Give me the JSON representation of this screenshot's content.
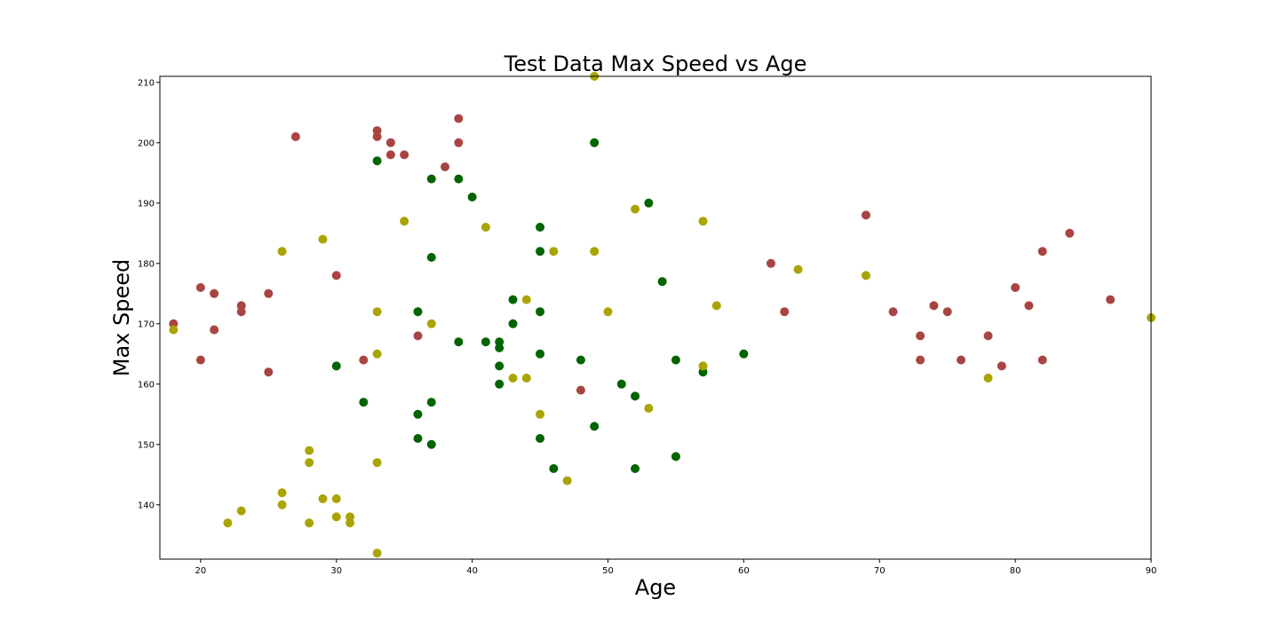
{
  "chart_data": {
    "type": "scatter",
    "title": "Test Data Max Speed vs Age",
    "xlabel": "Age",
    "ylabel": "Max Speed",
    "xlim": [
      17,
      90
    ],
    "ylim": [
      131,
      211
    ],
    "xticks": [
      20,
      30,
      40,
      50,
      60,
      70,
      80,
      90
    ],
    "yticks": [
      140,
      150,
      160,
      170,
      180,
      190,
      200,
      210
    ],
    "xtick_labels": [
      "20",
      "30",
      "40",
      "50",
      "60",
      "70",
      "80",
      "90"
    ],
    "ytick_labels": [
      "140",
      "150",
      "160",
      "170",
      "180",
      "190",
      "200",
      "210"
    ],
    "grid": false,
    "legend": null,
    "series": [
      {
        "name": "red",
        "color": "#a94442",
        "points": [
          [
            18,
            170
          ],
          [
            20,
            176
          ],
          [
            20,
            164
          ],
          [
            21,
            175
          ],
          [
            21,
            169
          ],
          [
            23,
            173
          ],
          [
            23,
            172
          ],
          [
            25,
            175
          ],
          [
            25,
            162
          ],
          [
            27,
            201
          ],
          [
            30,
            178
          ],
          [
            32,
            164
          ],
          [
            33,
            202
          ],
          [
            33,
            201
          ],
          [
            34,
            200
          ],
          [
            34,
            198
          ],
          [
            35,
            198
          ],
          [
            36,
            168
          ],
          [
            38,
            196
          ],
          [
            39,
            204
          ],
          [
            39,
            200
          ],
          [
            48,
            159
          ],
          [
            62,
            180
          ],
          [
            63,
            172
          ],
          [
            69,
            188
          ],
          [
            71,
            172
          ],
          [
            73,
            168
          ],
          [
            73,
            164
          ],
          [
            74,
            173
          ],
          [
            75,
            172
          ],
          [
            76,
            164
          ],
          [
            78,
            168
          ],
          [
            79,
            163
          ],
          [
            80,
            176
          ],
          [
            81,
            173
          ],
          [
            82,
            182
          ],
          [
            82,
            164
          ],
          [
            84,
            185
          ],
          [
            87,
            174
          ]
        ]
      },
      {
        "name": "green",
        "color": "#006400",
        "points": [
          [
            30,
            163
          ],
          [
            32,
            157
          ],
          [
            33,
            197
          ],
          [
            36,
            172
          ],
          [
            36,
            155
          ],
          [
            36,
            151
          ],
          [
            37,
            194
          ],
          [
            37,
            181
          ],
          [
            37,
            157
          ],
          [
            37,
            150
          ],
          [
            39,
            194
          ],
          [
            39,
            167
          ],
          [
            40,
            191
          ],
          [
            41,
            167
          ],
          [
            42,
            167
          ],
          [
            42,
            166
          ],
          [
            42,
            163
          ],
          [
            42,
            160
          ],
          [
            43,
            174
          ],
          [
            43,
            170
          ],
          [
            45,
            186
          ],
          [
            45,
            182
          ],
          [
            45,
            172
          ],
          [
            45,
            165
          ],
          [
            45,
            151
          ],
          [
            46,
            146
          ],
          [
            48,
            164
          ],
          [
            49,
            200
          ],
          [
            49,
            153
          ],
          [
            51,
            160
          ],
          [
            52,
            158
          ],
          [
            52,
            146
          ],
          [
            53,
            190
          ],
          [
            54,
            177
          ],
          [
            55,
            164
          ],
          [
            55,
            148
          ],
          [
            57,
            162
          ],
          [
            60,
            165
          ]
        ]
      },
      {
        "name": "yellow",
        "color": "#aaa400",
        "points": [
          [
            18,
            169
          ],
          [
            22,
            137
          ],
          [
            23,
            139
          ],
          [
            26,
            182
          ],
          [
            26,
            142
          ],
          [
            26,
            140
          ],
          [
            28,
            149
          ],
          [
            28,
            147
          ],
          [
            28,
            137
          ],
          [
            29,
            184
          ],
          [
            29,
            141
          ],
          [
            30,
            141
          ],
          [
            30,
            138
          ],
          [
            31,
            138
          ],
          [
            31,
            137
          ],
          [
            33,
            172
          ],
          [
            33,
            165
          ],
          [
            33,
            147
          ],
          [
            33,
            132
          ],
          [
            35,
            187
          ],
          [
            37,
            170
          ],
          [
            41,
            186
          ],
          [
            43,
            161
          ],
          [
            44,
            174
          ],
          [
            44,
            161
          ],
          [
            45,
            155
          ],
          [
            46,
            182
          ],
          [
            47,
            144
          ],
          [
            49,
            211
          ],
          [
            49,
            182
          ],
          [
            50,
            172
          ],
          [
            52,
            189
          ],
          [
            53,
            156
          ],
          [
            57,
            187
          ],
          [
            57,
            163
          ],
          [
            58,
            173
          ],
          [
            64,
            179
          ],
          [
            69,
            178
          ],
          [
            78,
            161
          ],
          [
            90,
            171
          ]
        ]
      }
    ]
  }
}
